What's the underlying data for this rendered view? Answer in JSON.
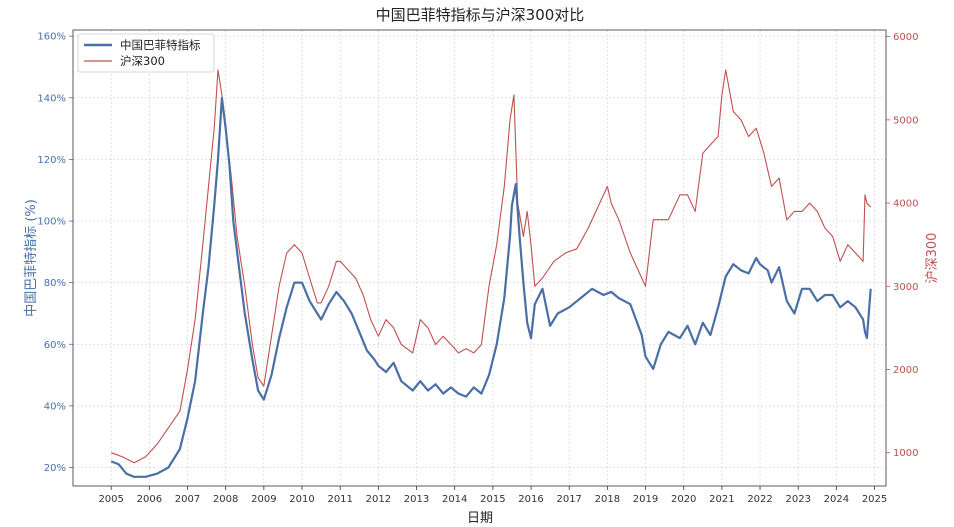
{
  "chart_data": {
    "type": "line",
    "title": "中国巴菲特指标与沪深300对比",
    "xlabel": "日期",
    "ylabel_left": "中国巴菲特指标 (%)",
    "ylabel_right": "沪深300",
    "x_ticks": [
      "2005",
      "2006",
      "2007",
      "2008",
      "2009",
      "2010",
      "2011",
      "2012",
      "2013",
      "2014",
      "2015",
      "2016",
      "2017",
      "2018",
      "2019",
      "2020",
      "2021",
      "2022",
      "2023",
      "2024",
      "2025"
    ],
    "y_left_ticks": [
      "20%",
      "40%",
      "60%",
      "80%",
      "100%",
      "120%",
      "140%",
      "160%"
    ],
    "y_right_ticks": [
      "1000",
      "2000",
      "3000",
      "4000",
      "5000",
      "6000"
    ],
    "ylim_left": [
      14,
      162
    ],
    "ylim_right": [
      600,
      6080
    ],
    "xlim": [
      2004.0,
      2025.3
    ],
    "grid": true,
    "legend": "top-left",
    "colors": {
      "buffett": "#4a6fa5",
      "hs300": "#c0504d"
    },
    "series": [
      {
        "name": "中国巴菲特指标",
        "axis": "left",
        "x": [
          2005.0,
          2005.2,
          2005.4,
          2005.6,
          2005.9,
          2006.2,
          2006.5,
          2006.8,
          2007.0,
          2007.2,
          2007.4,
          2007.55,
          2007.7,
          2007.8,
          2007.9,
          2008.0,
          2008.1,
          2008.2,
          2008.35,
          2008.5,
          2008.7,
          2008.85,
          2009.0,
          2009.2,
          2009.4,
          2009.6,
          2009.8,
          2010.0,
          2010.2,
          2010.4,
          2010.5,
          2010.7,
          2010.9,
          2011.1,
          2011.3,
          2011.5,
          2011.7,
          2011.9,
          2012.0,
          2012.2,
          2012.4,
          2012.6,
          2012.9,
          2013.1,
          2013.3,
          2013.5,
          2013.7,
          2013.9,
          2014.1,
          2014.3,
          2014.5,
          2014.7,
          2014.9,
          2015.1,
          2015.3,
          2015.45,
          2015.5,
          2015.6,
          2015.7,
          2015.8,
          2015.9,
          2016.0,
          2016.1,
          2016.3,
          2016.5,
          2016.7,
          2017.0,
          2017.3,
          2017.6,
          2017.9,
          2018.1,
          2018.3,
          2018.6,
          2018.9,
          2019.0,
          2019.2,
          2019.4,
          2019.6,
          2019.9,
          2020.1,
          2020.3,
          2020.5,
          2020.7,
          2020.9,
          2021.1,
          2021.3,
          2021.5,
          2021.7,
          2021.9,
          2022.0,
          2022.2,
          2022.3,
          2022.5,
          2022.7,
          2022.9,
          2023.1,
          2023.3,
          2023.5,
          2023.7,
          2023.9,
          2024.1,
          2024.3,
          2024.5,
          2024.7,
          2024.75,
          2024.8,
          2024.9
        ],
        "y": [
          22,
          21,
          18,
          17,
          17,
          18,
          20,
          26,
          36,
          48,
          70,
          85,
          105,
          120,
          140,
          130,
          118,
          100,
          85,
          70,
          55,
          45,
          42,
          50,
          62,
          72,
          80,
          80,
          74,
          70,
          68,
          73,
          77,
          74,
          70,
          64,
          58,
          55,
          53,
          51,
          54,
          48,
          45,
          48,
          45,
          47,
          44,
          46,
          44,
          43,
          46,
          44,
          50,
          60,
          75,
          95,
          105,
          112,
          95,
          80,
          67,
          62,
          73,
          78,
          66,
          70,
          72,
          75,
          78,
          76,
          77,
          75,
          73,
          63,
          56,
          52,
          60,
          64,
          62,
          66,
          60,
          67,
          63,
          72,
          82,
          86,
          84,
          83,
          88,
          86,
          84,
          80,
          85,
          74,
          70,
          78,
          78,
          74,
          76,
          76,
          72,
          74,
          72,
          68,
          64,
          62,
          78
        ]
      },
      {
        "name": "沪深300",
        "axis": "right",
        "x": [
          2005.0,
          2005.3,
          2005.6,
          2005.9,
          2006.2,
          2006.5,
          2006.8,
          2007.0,
          2007.2,
          2007.4,
          2007.55,
          2007.7,
          2007.8,
          2007.9,
          2008.0,
          2008.15,
          2008.3,
          2008.5,
          2008.7,
          2008.85,
          2009.0,
          2009.2,
          2009.4,
          2009.6,
          2009.8,
          2010.0,
          2010.2,
          2010.4,
          2010.5,
          2010.7,
          2010.9,
          2011.0,
          2011.2,
          2011.4,
          2011.6,
          2011.8,
          2012.0,
          2012.2,
          2012.4,
          2012.6,
          2012.9,
          2013.1,
          2013.3,
          2013.5,
          2013.7,
          2013.9,
          2014.1,
          2014.3,
          2014.5,
          2014.7,
          2014.9,
          2015.1,
          2015.3,
          2015.45,
          2015.55,
          2015.65,
          2015.8,
          2015.9,
          2016.0,
          2016.1,
          2016.3,
          2016.6,
          2016.9,
          2017.2,
          2017.5,
          2017.8,
          2018.0,
          2018.1,
          2018.3,
          2018.6,
          2018.9,
          2019.0,
          2019.2,
          2019.4,
          2019.6,
          2019.9,
          2020.1,
          2020.3,
          2020.5,
          2020.7,
          2020.9,
          2021.0,
          2021.1,
          2021.3,
          2021.5,
          2021.7,
          2021.9,
          2022.1,
          2022.3,
          2022.5,
          2022.7,
          2022.9,
          2023.1,
          2023.3,
          2023.5,
          2023.7,
          2023.9,
          2024.1,
          2024.3,
          2024.5,
          2024.7,
          2024.75,
          2024.8,
          2024.9
        ],
        "y": [
          1000,
          950,
          880,
          950,
          1100,
          1300,
          1500,
          2000,
          2600,
          3500,
          4200,
          4900,
          5600,
          5300,
          4900,
          4300,
          3600,
          3000,
          2300,
          1900,
          1800,
          2400,
          3000,
          3400,
          3500,
          3400,
          3100,
          2800,
          2800,
          3000,
          3300,
          3300,
          3200,
          3100,
          2900,
          2600,
          2400,
          2600,
          2500,
          2300,
          2200,
          2600,
          2500,
          2300,
          2400,
          2300,
          2200,
          2250,
          2200,
          2300,
          3000,
          3500,
          4200,
          5000,
          5300,
          4000,
          3600,
          3900,
          3500,
          3000,
          3100,
          3300,
          3400,
          3450,
          3700,
          4000,
          4200,
          4000,
          3800,
          3400,
          3100,
          3000,
          3800,
          3800,
          3800,
          4100,
          4100,
          3900,
          4600,
          4700,
          4800,
          5300,
          5600,
          5100,
          5000,
          4800,
          4900,
          4600,
          4200,
          4300,
          3800,
          3900,
          3900,
          4000,
          3900,
          3700,
          3600,
          3300,
          3500,
          3400,
          3300,
          4100,
          4000,
          3950
        ]
      }
    ]
  }
}
